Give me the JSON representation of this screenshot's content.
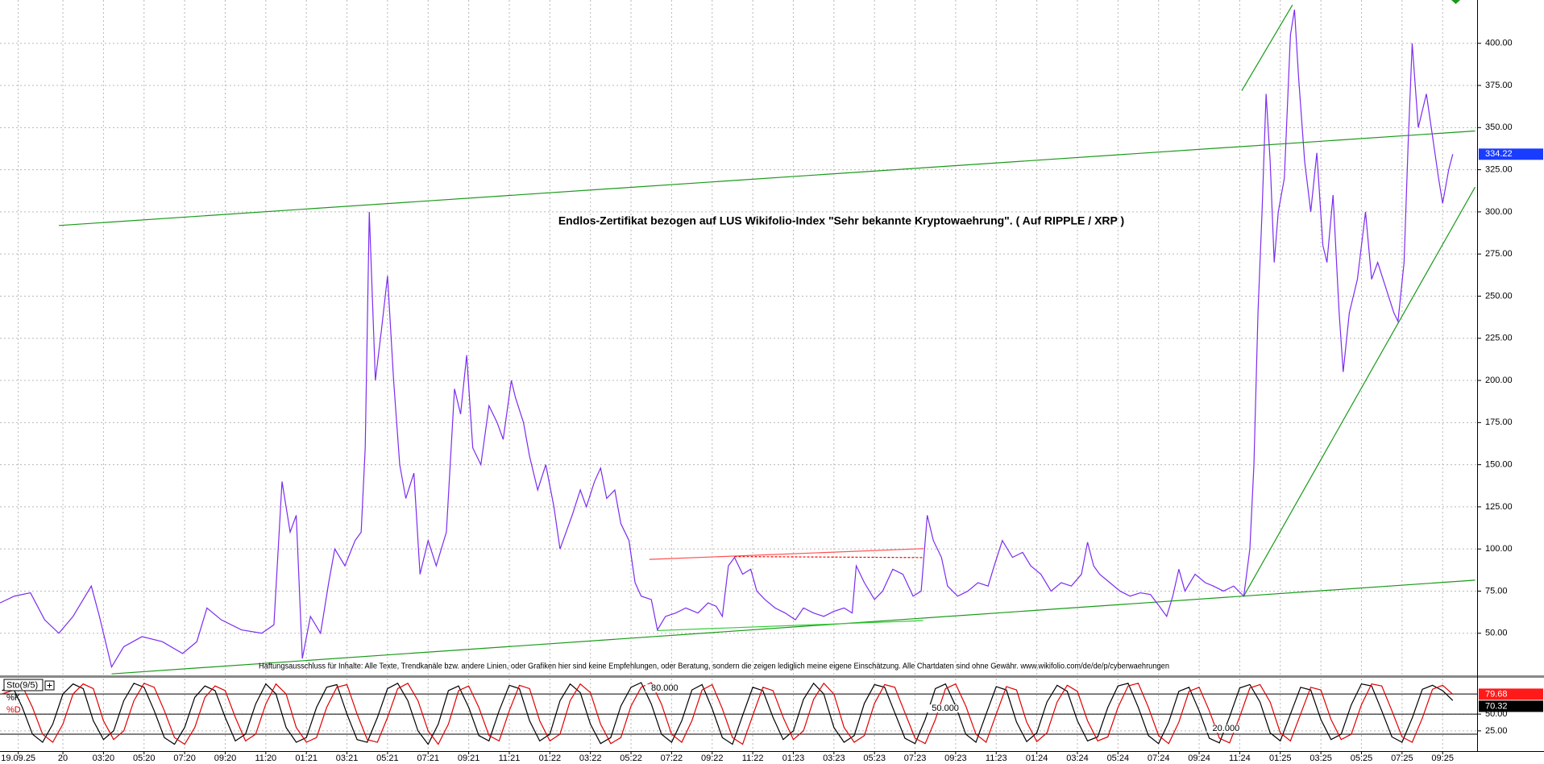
{
  "chart_data": [
    {
      "type": "line",
      "title": "Endlos-Zertifikat bezogen auf LUS Wikifolio-Index \"Sehr bekannte Kryptowaehrung\". ( Auf RIPPLE / XRP )",
      "disclaimer": "Haftungsausschluss für Inhalte: Alle Texte, Trendkanäle bzw. andere Linien, oder Grafiken hier sind keine Empfehlungen, oder Beratung, sondern die zeigen lediglich meine eigene Einschätzung. Alle Chartdaten sind ohne Gewähr. www.wikifolio.com/de/de/p/cyberwaehrungen",
      "grid": true,
      "xlim": [
        -3.1,
        69.7
      ],
      "ylim": [
        25.5,
        425.7
      ],
      "xticks": [
        {
          "value": -2.2,
          "label": "19.09.25"
        },
        {
          "value": 0,
          "label": "20"
        },
        {
          "value": 2,
          "label": "03:20"
        },
        {
          "value": 4,
          "label": "05:20"
        },
        {
          "value": 6,
          "label": "07:20"
        },
        {
          "value": 8,
          "label": "09:20"
        },
        {
          "value": 10,
          "label": "11:20"
        },
        {
          "value": 12,
          "label": "01:21"
        },
        {
          "value": 14,
          "label": "03:21"
        },
        {
          "value": 16,
          "label": "05:21"
        },
        {
          "value": 18,
          "label": "07:21"
        },
        {
          "value": 20,
          "label": "09:21"
        },
        {
          "value": 22,
          "label": "11:21"
        },
        {
          "value": 24,
          "label": "01:22"
        },
        {
          "value": 26,
          "label": "03:22"
        },
        {
          "value": 28,
          "label": "05:22"
        },
        {
          "value": 30,
          "label": "07:22"
        },
        {
          "value": 32,
          "label": "09:22"
        },
        {
          "value": 34,
          "label": "11:22"
        },
        {
          "value": 36,
          "label": "01:23"
        },
        {
          "value": 38,
          "label": "03:23"
        },
        {
          "value": 40,
          "label": "05:23"
        },
        {
          "value": 42,
          "label": "07:23"
        },
        {
          "value": 44,
          "label": "09:23"
        },
        {
          "value": 46,
          "label": "11:23"
        },
        {
          "value": 48,
          "label": "01:24"
        },
        {
          "value": 50,
          "label": "03:24"
        },
        {
          "value": 52,
          "label": "05:24"
        },
        {
          "value": 54,
          "label": "07:24"
        },
        {
          "value": 56,
          "label": "09:24"
        },
        {
          "value": 58,
          "label": "11:24"
        },
        {
          "value": 60,
          "label": "01:25"
        },
        {
          "value": 62,
          "label": "03:25"
        },
        {
          "value": 64,
          "label": "05:25"
        },
        {
          "value": 66,
          "label": "07:25"
        },
        {
          "value": 68,
          "label": "09:25"
        }
      ],
      "yticks": [
        {
          "value": 50,
          "label": "50.00"
        },
        {
          "value": 75,
          "label": "75.00"
        },
        {
          "value": 100,
          "label": "100.00"
        },
        {
          "value": 125,
          "label": "125.00"
        },
        {
          "value": 150,
          "label": "150.00"
        },
        {
          "value": 175,
          "label": "175.00"
        },
        {
          "value": 200,
          "label": "200.00"
        },
        {
          "value": 225,
          "label": "225.00"
        },
        {
          "value": 250,
          "label": "250.00"
        },
        {
          "value": 275,
          "label": "275.00"
        },
        {
          "value": 300,
          "label": "300.00"
        },
        {
          "value": 325,
          "label": "325.00"
        },
        {
          "value": 350,
          "label": "350.00"
        },
        {
          "value": 375,
          "label": "375.00"
        },
        {
          "value": 400,
          "label": "400.00"
        }
      ],
      "x": [
        -3.1,
        -2.4,
        -1.6,
        -0.9,
        -0.2,
        0.5,
        1.4,
        1.8,
        2.1,
        2.4,
        3.0,
        3.9,
        4.9,
        5.9,
        6.6,
        7.1,
        7.8,
        8.8,
        9.8,
        10.4,
        10.8,
        11.2,
        11.5,
        11.8,
        12.2,
        12.7,
        13.1,
        13.4,
        13.9,
        14.4,
        14.7,
        14.9,
        15.1,
        15.4,
        15.7,
        16.0,
        16.3,
        16.6,
        16.9,
        17.3,
        17.6,
        18.0,
        18.4,
        18.9,
        19.3,
        19.6,
        19.9,
        20.2,
        20.6,
        21.0,
        21.4,
        21.7,
        22.1,
        22.3,
        22.7,
        23.0,
        23.4,
        23.8,
        24.2,
        24.5,
        24.8,
        25.1,
        25.5,
        25.8,
        26.2,
        26.5,
        26.8,
        27.2,
        27.5,
        27.9,
        28.2,
        28.5,
        29.0,
        29.3,
        29.7,
        30.2,
        30.7,
        31.3,
        31.8,
        32.2,
        32.5,
        32.8,
        33.1,
        33.5,
        33.9,
        34.2,
        34.6,
        35.1,
        35.6,
        36.1,
        36.5,
        37.0,
        37.5,
        38.0,
        38.5,
        38.9,
        39.1,
        39.5,
        40.0,
        40.4,
        40.9,
        41.4,
        41.9,
        42.3,
        42.6,
        42.9,
        43.3,
        43.6,
        44.1,
        44.6,
        45.1,
        45.6,
        45.9,
        46.3,
        46.8,
        47.3,
        47.7,
        48.2,
        48.7,
        49.2,
        49.7,
        50.2,
        50.5,
        50.8,
        51.1,
        51.6,
        52.1,
        52.6,
        53.1,
        53.6,
        54.1,
        54.4,
        54.7,
        55.0,
        55.3,
        55.8,
        56.3,
        56.7,
        57.2,
        57.7,
        58.2,
        58.5,
        58.7,
        58.9,
        59.1,
        59.3,
        59.5,
        59.7,
        59.9,
        60.2,
        60.5,
        60.7,
        60.9,
        61.2,
        61.5,
        61.8,
        62.1,
        62.3,
        62.6,
        62.9,
        63.1,
        63.4,
        63.8,
        64.2,
        64.5,
        64.8,
        65.2,
        65.6,
        65.8,
        66.1,
        66.3,
        66.5,
        66.8,
        67.2,
        67.5,
        67.8,
        68.0,
        68.3,
        68.5
      ],
      "series": [
        {
          "color": "#7b2cf0",
          "values": [
            68,
            72,
            74,
            58,
            50,
            60,
            78,
            60,
            45,
            30,
            42,
            48,
            45,
            38,
            45,
            65,
            58,
            52,
            50,
            55,
            140,
            110,
            120,
            35,
            60,
            50,
            80,
            100,
            90,
            105,
            110,
            160,
            300,
            200,
            230,
            262,
            200,
            150,
            130,
            145,
            85,
            105,
            90,
            110,
            195,
            180,
            215,
            160,
            150,
            185,
            175,
            165,
            200,
            190,
            175,
            155,
            135,
            150,
            125,
            100,
            110,
            120,
            135,
            125,
            140,
            148,
            130,
            135,
            115,
            105,
            80,
            72,
            70,
            52,
            60,
            62,
            65,
            62,
            68,
            66,
            60,
            90,
            95,
            85,
            88,
            75,
            70,
            65,
            62,
            58,
            65,
            62,
            60,
            63,
            65,
            62,
            90,
            80,
            70,
            75,
            88,
            85,
            72,
            75,
            120,
            105,
            95,
            78,
            72,
            75,
            80,
            78,
            90,
            105,
            95,
            98,
            90,
            85,
            75,
            80,
            78,
            85,
            104,
            90,
            85,
            80,
            75,
            72,
            74,
            73,
            65,
            60,
            72,
            88,
            75,
            85,
            80,
            78,
            75,
            78,
            72,
            100,
            150,
            240,
            300,
            370,
            330,
            270,
            300,
            320,
            405,
            420,
            380,
            330,
            300,
            335,
            280,
            270,
            310,
            240,
            205,
            240,
            260,
            300,
            260,
            270,
            255,
            240,
            235,
            270,
            340,
            400,
            350,
            370,
            345,
            320,
            305,
            325,
            334.22
          ]
        }
      ],
      "lines": [
        {
          "color": "#1a9a1a",
          "x": [
            -0.2,
            69.6
          ],
          "y": [
            291.9,
            348.0
          ]
        },
        {
          "color": "#1a9a1a",
          "x": [
            2.4,
            69.6
          ],
          "y": [
            25.9,
            81.5
          ]
        },
        {
          "color": "#1a9a1a",
          "x": [
            58.1,
            60.6
          ],
          "y": [
            371.9,
            422.8
          ]
        },
        {
          "color": "#1a9a1a",
          "x": [
            58.2,
            69.6
          ],
          "y": [
            72.1,
            314.7
          ]
        },
        {
          "color": "#33cc33",
          "x": [
            29.3,
            42.4
          ],
          "y": [
            51.6,
            57.5
          ]
        },
        {
          "color": "#ff5050",
          "x": [
            28.9,
            42.4
          ],
          "y": [
            93.8,
            100.2
          ]
        },
        {
          "color": "#ff0000",
          "x": [
            33.1,
            42.4
          ],
          "y": [
            95.5,
            94.9
          ],
          "dashed": true
        }
      ]
    },
    {
      "type": "line",
      "title": "Sto(9/5)",
      "grid": true,
      "xlim": [
        -3.1,
        69.7
      ],
      "ylim": [
        -4,
        103
      ],
      "yticks": [
        {
          "value": 25,
          "label": "25.00"
        },
        {
          "value": 50,
          "label": "50.00"
        }
      ],
      "levels": [
        {
          "value": 80,
          "label": "80.000"
        },
        {
          "value": 50,
          "label": "50.000"
        },
        {
          "value": 20,
          "label": "20.000"
        }
      ],
      "x": [
        -3,
        -2.5,
        -2,
        -1.5,
        -1,
        -0.5,
        0,
        0.5,
        1,
        1.5,
        2,
        2.5,
        3,
        3.5,
        4,
        4.5,
        5,
        5.5,
        6,
        6.5,
        7,
        7.5,
        8,
        8.5,
        9,
        9.5,
        10,
        10.5,
        11,
        11.5,
        12,
        12.5,
        13,
        13.5,
        14,
        14.5,
        15,
        15.5,
        16,
        16.5,
        17,
        17.5,
        18,
        18.5,
        19,
        19.5,
        20,
        20.5,
        21,
        21.5,
        22,
        22.5,
        23,
        23.5,
        24,
        24.5,
        25,
        25.5,
        26,
        26.5,
        27,
        27.5,
        28,
        28.5,
        29,
        29.5,
        30,
        30.5,
        31,
        31.5,
        32,
        32.5,
        33,
        33.5,
        34,
        34.5,
        35,
        35.5,
        36,
        36.5,
        37,
        37.5,
        38,
        38.5,
        39,
        39.5,
        40,
        40.5,
        41,
        41.5,
        42,
        42.5,
        43,
        43.5,
        44,
        44.5,
        45,
        45.5,
        46,
        46.5,
        47,
        47.5,
        48,
        48.5,
        49,
        49.5,
        50,
        50.5,
        51,
        51.5,
        52,
        52.5,
        53,
        53.5,
        54,
        54.5,
        55,
        55.5,
        56,
        56.5,
        57,
        57.5,
        58,
        58.5,
        59,
        59.5,
        60,
        60.5,
        61,
        61.5,
        62,
        62.5,
        63,
        63.5,
        64,
        64.5,
        65,
        65.5,
        66,
        66.5,
        67,
        67.5,
        68,
        68.5
      ],
      "series": [
        {
          "name": "%K",
          "color": "#000000",
          "values": [
            85,
            92,
            60,
            20,
            8,
            35,
            80,
            95,
            88,
            40,
            12,
            25,
            70,
            96,
            90,
            55,
            15,
            5,
            30,
            75,
            92,
            85,
            45,
            10,
            20,
            65,
            95,
            80,
            30,
            8,
            15,
            60,
            90,
            94,
            50,
            12,
            8,
            45,
            88,
            96,
            70,
            25,
            5,
            35,
            85,
            92,
            60,
            18,
            10,
            55,
            93,
            88,
            40,
            10,
            20,
            70,
            95,
            82,
            35,
            6,
            15,
            62,
            90,
            97,
            65,
            20,
            8,
            40,
            86,
            94,
            58,
            15,
            5,
            48,
            90,
            85,
            45,
            12,
            25,
            72,
            96,
            80,
            30,
            8,
            18,
            66,
            94,
            90,
            52,
            14,
            6,
            42,
            88,
            95,
            62,
            20,
            8,
            50,
            91,
            86,
            38,
            9,
            22,
            68,
            93,
            84,
            40,
            10,
            16,
            60,
            92,
            96,
            60,
            18,
            6,
            38,
            84,
            90,
            55,
            14,
            7,
            46,
            89,
            94,
            68,
            22,
            10,
            50,
            90,
            86,
            42,
            12,
            20,
            64,
            95,
            92,
            55,
            16,
            8,
            44,
            87,
            93,
            85,
            70.32
          ]
        },
        {
          "name": "%D",
          "color": "#e00000",
          "values": [
            80,
            85,
            92,
            60,
            20,
            8,
            35,
            80,
            95,
            88,
            40,
            12,
            25,
            70,
            96,
            90,
            55,
            15,
            5,
            30,
            75,
            92,
            85,
            45,
            10,
            20,
            65,
            95,
            80,
            30,
            8,
            15,
            60,
            90,
            94,
            50,
            12,
            8,
            45,
            88,
            96,
            70,
            25,
            5,
            35,
            85,
            92,
            60,
            18,
            10,
            55,
            93,
            88,
            40,
            10,
            20,
            70,
            95,
            82,
            35,
            6,
            15,
            62,
            90,
            97,
            65,
            20,
            8,
            40,
            86,
            94,
            58,
            15,
            5,
            48,
            90,
            85,
            45,
            12,
            25,
            72,
            96,
            80,
            30,
            8,
            18,
            66,
            94,
            90,
            52,
            14,
            6,
            42,
            88,
            95,
            62,
            20,
            8,
            50,
            91,
            86,
            38,
            9,
            22,
            68,
            93,
            84,
            40,
            10,
            16,
            60,
            92,
            96,
            60,
            18,
            6,
            38,
            84,
            90,
            55,
            14,
            7,
            46,
            89,
            94,
            68,
            22,
            10,
            50,
            90,
            86,
            42,
            12,
            20,
            64,
            95,
            92,
            55,
            16,
            8,
            44,
            87,
            93,
            79.68
          ]
        }
      ]
    }
  ]
}
